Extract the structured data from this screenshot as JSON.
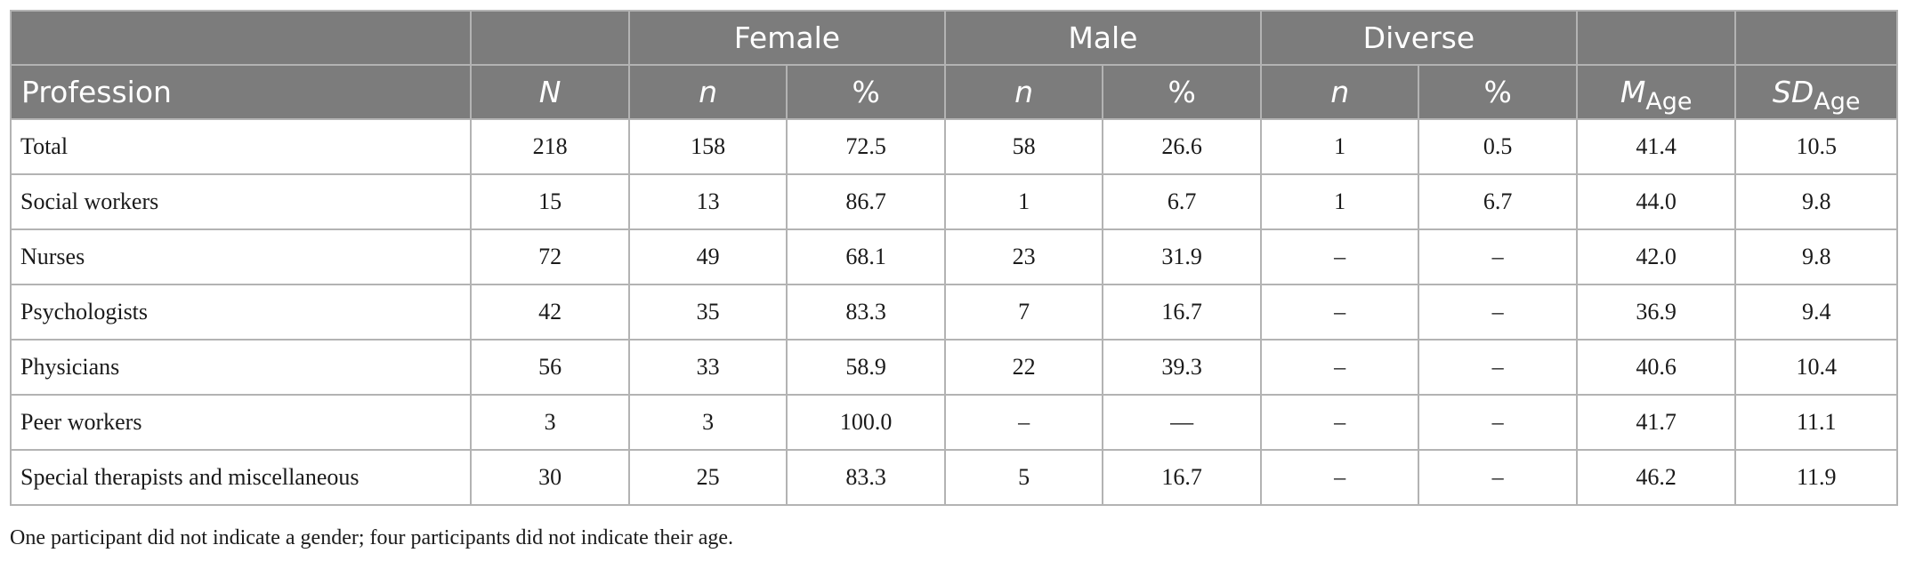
{
  "table": {
    "group_headers": {
      "female": "Female",
      "male": "Male",
      "diverse": "Diverse"
    },
    "column_headers": {
      "profession": "Profession",
      "N": "N",
      "female_n": "n",
      "female_pct": "%",
      "male_n": "n",
      "male_pct": "%",
      "diverse_n": "n",
      "diverse_pct": "%",
      "m_age": "M",
      "m_age_sub": "Age",
      "sd_age": "SD",
      "sd_age_sub": "Age"
    },
    "rows": [
      [
        "Total",
        "218",
        "158",
        "72.5",
        "58",
        "26.6",
        "1",
        "0.5",
        "41.4",
        "10.5"
      ],
      [
        "Social workers",
        "15",
        "13",
        "86.7",
        "1",
        "6.7",
        "1",
        "6.7",
        "44.0",
        "9.8"
      ],
      [
        "Nurses",
        "72",
        "49",
        "68.1",
        "23",
        "31.9",
        "–",
        "–",
        "42.0",
        "9.8"
      ],
      [
        "Psychologists",
        "42",
        "35",
        "83.3",
        "7",
        "16.7",
        "–",
        "–",
        "36.9",
        "9.4"
      ],
      [
        "Physicians",
        "56",
        "33",
        "58.9",
        "22",
        "39.3",
        "–",
        "–",
        "40.6",
        "10.4"
      ],
      [
        "Peer workers",
        "3",
        "3",
        "100.0",
        "–",
        "—",
        "–",
        "–",
        "41.7",
        "11.1"
      ],
      [
        "Special therapists and miscellaneous",
        "30",
        "25",
        "83.3",
        "5",
        "16.7",
        "–",
        "–",
        "46.2",
        "11.9"
      ]
    ]
  },
  "footnote": "One participant did not indicate a gender; four participants did not indicate their age.",
  "colors": {
    "header_bg": "#7c7c7c",
    "header_text": "#ffffff",
    "border": "#b3b3b3"
  }
}
